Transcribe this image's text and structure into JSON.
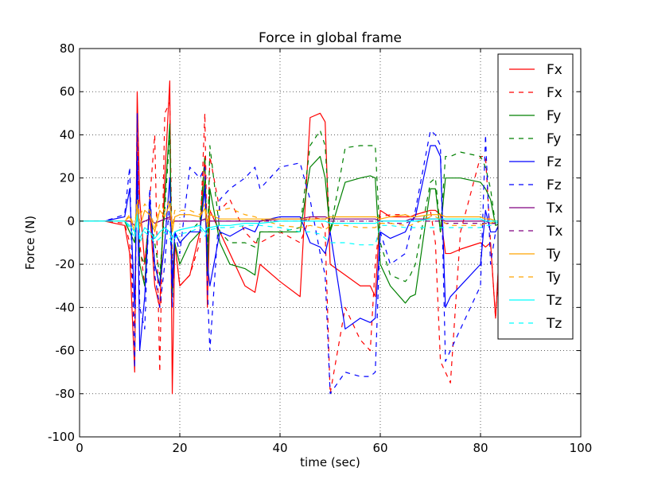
{
  "chart_data": {
    "type": "line",
    "title": "Force in global frame",
    "xlabel": "time (sec)",
    "ylabel": "Force (N)",
    "xlim": [
      0,
      100
    ],
    "ylim": [
      -100,
      80
    ],
    "xticks": [
      0,
      20,
      40,
      60,
      80,
      100
    ],
    "yticks": [
      -100,
      -80,
      -60,
      -40,
      -20,
      0,
      20,
      40,
      60,
      80
    ],
    "grid": true,
    "legend": "upper right",
    "x": [
      0,
      5,
      9,
      10,
      11,
      11.5,
      12,
      13,
      14,
      15,
      16,
      17,
      18,
      18.5,
      19,
      20,
      22,
      24,
      25,
      25.5,
      26,
      28,
      30,
      33,
      35,
      36,
      40,
      44,
      46,
      48,
      49,
      50,
      53,
      56,
      58,
      59,
      60,
      62,
      65,
      66,
      67,
      70,
      71,
      72,
      73,
      74,
      76,
      80,
      81,
      82,
      83,
      84
    ],
    "series": [
      {
        "name": "Fx",
        "color": "#ff0000",
        "dashed": false,
        "values": [
          0,
          0,
          -2,
          -15,
          -70,
          60,
          10,
          -20,
          5,
          -30,
          -40,
          20,
          65,
          -80,
          -10,
          -30,
          -25,
          -5,
          30,
          -40,
          5,
          -5,
          -15,
          -30,
          -33,
          -20,
          -28,
          -35,
          48,
          50,
          46,
          -20,
          -25,
          -30,
          -30,
          -35,
          5,
          2,
          2,
          2,
          3,
          5,
          5,
          3,
          -15,
          -15,
          -13,
          -10,
          -12,
          -10,
          -45,
          -3
        ]
      },
      {
        "name": "Fx",
        "color": "#ff0000",
        "dashed": true,
        "values": [
          0,
          0,
          -1,
          -10,
          -50,
          40,
          -10,
          -30,
          10,
          40,
          -70,
          50,
          55,
          -20,
          -10,
          -30,
          -25,
          -10,
          50,
          -20,
          30,
          5,
          10,
          -5,
          -10,
          -10,
          -5,
          -10,
          2,
          1,
          -5,
          -80,
          -40,
          -55,
          -60,
          -20,
          2,
          3,
          3,
          2,
          3,
          5,
          -10,
          -65,
          -70,
          -75,
          -5,
          30,
          30,
          -10,
          -45,
          -5
        ]
      },
      {
        "name": "Fy",
        "color": "#008000",
        "dashed": false,
        "values": [
          0,
          0,
          0,
          -5,
          -10,
          15,
          -20,
          -30,
          10,
          -20,
          -30,
          10,
          45,
          -35,
          -10,
          -20,
          -10,
          -5,
          20,
          -25,
          15,
          -10,
          -20,
          -22,
          -25,
          -5,
          -5,
          -5,
          25,
          30,
          20,
          -5,
          18,
          20,
          21,
          20,
          -20,
          -30,
          -38,
          -35,
          -34,
          15,
          15,
          -5,
          20,
          20,
          20,
          18,
          15,
          10,
          -2,
          -1
        ]
      },
      {
        "name": "Fy",
        "color": "#008000",
        "dashed": true,
        "values": [
          0,
          0,
          0,
          -3,
          -8,
          10,
          -15,
          -20,
          5,
          -10,
          -25,
          5,
          40,
          -30,
          -5,
          -10,
          -5,
          0,
          30,
          -15,
          35,
          -5,
          -10,
          -10,
          -12,
          -5,
          -5,
          -3,
          35,
          42,
          35,
          -5,
          34,
          35,
          35,
          35,
          -10,
          -25,
          -28,
          -25,
          -20,
          18,
          20,
          -5,
          30,
          30,
          32,
          30,
          25,
          15,
          -2,
          -1
        ]
      },
      {
        "name": "Fz",
        "color": "#0000ff",
        "dashed": false,
        "values": [
          0,
          0,
          2,
          15,
          -40,
          30,
          -60,
          -35,
          10,
          -20,
          -30,
          -10,
          20,
          -30,
          -5,
          -10,
          -5,
          -5,
          15,
          -20,
          -30,
          -5,
          -7,
          -3,
          -5,
          0,
          2,
          2,
          -10,
          -12,
          -15,
          -5,
          -50,
          -45,
          -47,
          -45,
          -5,
          -8,
          -5,
          0,
          2,
          35,
          35,
          30,
          -40,
          -35,
          -30,
          -20,
          5,
          -5,
          -5,
          0
        ]
      },
      {
        "name": "Fz",
        "color": "#0000ff",
        "dashed": true,
        "values": [
          0,
          0,
          3,
          25,
          -68,
          50,
          -40,
          -50,
          15,
          -25,
          -40,
          -20,
          10,
          -40,
          -5,
          -15,
          25,
          20,
          25,
          -30,
          -60,
          10,
          15,
          20,
          25,
          15,
          25,
          27,
          10,
          -15,
          -25,
          -80,
          -70,
          -72,
          -72,
          -70,
          -5,
          -20,
          -15,
          -5,
          5,
          42,
          40,
          35,
          -65,
          -60,
          -50,
          -30,
          40,
          -20,
          -5,
          0
        ]
      },
      {
        "name": "Tx",
        "color": "#800080",
        "dashed": false,
        "values": [
          0,
          0,
          0,
          0,
          -2,
          2,
          -1,
          0,
          1,
          -1,
          0,
          1,
          2,
          -1,
          0,
          0,
          0,
          0,
          1,
          -1,
          0,
          0,
          0,
          0,
          0,
          0,
          1,
          1,
          2,
          2,
          2,
          1,
          1,
          1,
          1,
          1,
          0,
          0,
          0,
          1,
          1,
          1,
          1,
          1,
          0,
          0,
          0,
          0,
          0,
          -1,
          -1,
          0
        ]
      },
      {
        "name": "Tx",
        "color": "#800080",
        "dashed": true,
        "values": [
          0,
          0,
          0,
          0,
          -1,
          1,
          -1,
          0,
          1,
          -1,
          0,
          1,
          1,
          -1,
          0,
          0,
          0,
          0,
          1,
          -1,
          0,
          0,
          0,
          0,
          0,
          0,
          0,
          0,
          1,
          1,
          1,
          0,
          0,
          0,
          0,
          0,
          0,
          -1,
          -1,
          0,
          0,
          0,
          0,
          0,
          -1,
          -1,
          -1,
          -1,
          -1,
          -1,
          -1,
          0
        ]
      },
      {
        "name": "Ty",
        "color": "#ffa500",
        "dashed": false,
        "values": [
          0,
          0,
          0,
          2,
          -5,
          8,
          -3,
          5,
          3,
          -5,
          5,
          2,
          8,
          -5,
          2,
          3,
          3,
          2,
          6,
          -3,
          3,
          1,
          1,
          1,
          1,
          1,
          1,
          1,
          1,
          1,
          1,
          2,
          2,
          2,
          2,
          2,
          1,
          2,
          3,
          2,
          2,
          3,
          3,
          3,
          2,
          2,
          2,
          2,
          1,
          1,
          0,
          0
        ]
      },
      {
        "name": "Ty",
        "color": "#ffa500",
        "dashed": true,
        "values": [
          0,
          0,
          0,
          3,
          -3,
          10,
          2,
          8,
          5,
          -3,
          8,
          5,
          10,
          -3,
          5,
          5,
          5,
          3,
          8,
          0,
          5,
          5,
          6,
          3,
          2,
          1,
          -2,
          -3,
          -2,
          -3,
          -4,
          -2,
          -2,
          -3,
          -3,
          -3,
          -1,
          -1,
          -2,
          -2,
          -1,
          2,
          2,
          1,
          -1,
          -2,
          -2,
          -2,
          -1,
          -1,
          0,
          0
        ]
      },
      {
        "name": "Tz",
        "color": "#00ffff",
        "dashed": false,
        "values": [
          0,
          0,
          0,
          -2,
          -5,
          3,
          -8,
          -3,
          -5,
          -8,
          -5,
          -3,
          -5,
          -8,
          -5,
          -4,
          -3,
          -2,
          -5,
          -3,
          -3,
          -2,
          -2,
          -1,
          -1,
          -1,
          0,
          0,
          0,
          0,
          0,
          -1,
          -1,
          -1,
          -1,
          -1,
          0,
          0,
          0,
          0,
          0,
          1,
          1,
          1,
          1,
          1,
          1,
          1,
          0,
          0,
          0,
          0
        ]
      },
      {
        "name": "Tz",
        "color": "#00ffff",
        "dashed": true,
        "values": [
          0,
          0,
          0,
          -3,
          -8,
          2,
          -10,
          -5,
          -7,
          -10,
          -8,
          -5,
          -8,
          -10,
          -8,
          -6,
          -5,
          -3,
          -7,
          -5,
          -4,
          -3,
          -3,
          -2,
          -2,
          -2,
          -3,
          -5,
          -5,
          -6,
          -8,
          -10,
          -10,
          -11,
          -11,
          -11,
          -2,
          -2,
          -3,
          -3,
          -3,
          -3,
          -3,
          -3,
          -3,
          -3,
          -3,
          -3,
          -2,
          -2,
          -1,
          0
        ]
      }
    ]
  }
}
